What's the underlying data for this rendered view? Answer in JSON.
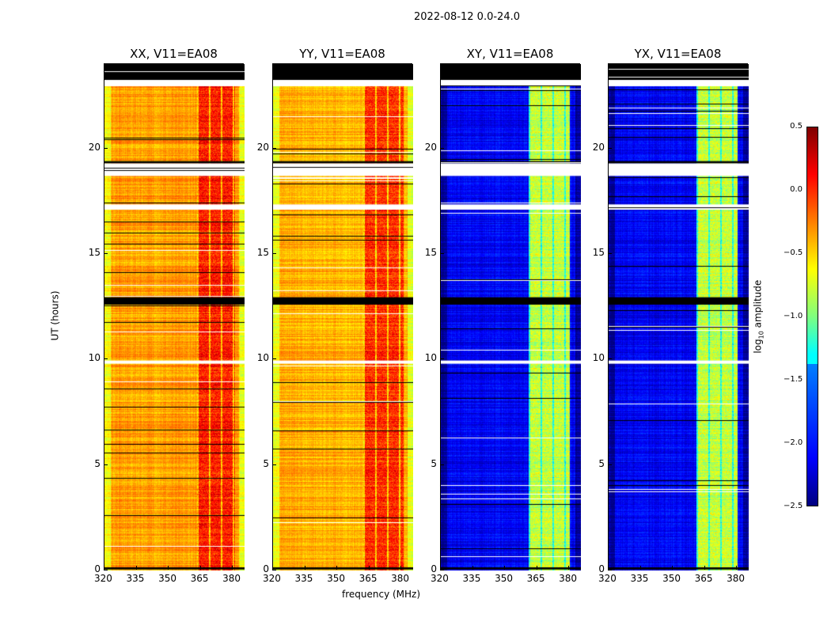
{
  "figure_title": "2022-08-12 0.0-24.0",
  "chart_data": {
    "type": "heatmap",
    "title": "2022-08-12 0.0-24.0",
    "xlabel": "frequency (MHz)",
    "ylabel": "UT (hours)",
    "xlim": [
      320,
      385.5
    ],
    "ylim": [
      0,
      24
    ],
    "xticks": [
      "320",
      "335",
      "350",
      "365",
      "380"
    ],
    "xtick_values": [
      320,
      335,
      350,
      365,
      380
    ],
    "yticks": [
      "0",
      "5",
      "10",
      "15",
      "20"
    ],
    "ytick_values": [
      0,
      5,
      10,
      15,
      20
    ],
    "colorbar": {
      "label_pre": "log",
      "label_sub": "10",
      "label_post": " amplitude",
      "range": [
        -2.5,
        0.5
      ],
      "ticks": [
        "0.5",
        "0.0",
        "−0.5",
        "−1.0",
        "−1.5",
        "−2.0",
        "−2.5"
      ],
      "tick_values": [
        0.5,
        0,
        -0.5,
        -1,
        -1.5,
        -2,
        -2.5
      ],
      "colormap": "jet"
    },
    "flagged_black_hours": [
      [
        23.25,
        24
      ],
      [
        12.6,
        12.95
      ],
      [
        19.3,
        19.4
      ],
      [
        0.05,
        0.15
      ]
    ],
    "missing_white_hours": [
      [
        22.95,
        23.25
      ],
      [
        18.7,
        19.3
      ],
      [
        17.1,
        17.35
      ],
      [
        9.8,
        9.95
      ]
    ],
    "panels": [
      {
        "title": "XX, V11=EA08",
        "base_level": -0.35,
        "rfi_level": 0.05,
        "rfi_band_mhz": [
          363,
          381
        ]
      },
      {
        "title": "YY, V11=EA08",
        "base_level": -0.4,
        "rfi_level": 0.0,
        "rfi_band_mhz": [
          362,
          381
        ]
      },
      {
        "title": "XY, V11=EA08",
        "base_level": -2.15,
        "rfi_level": -0.8,
        "rfi_band_mhz": [
          361,
          380
        ]
      },
      {
        "title": "YX, V11=EA08",
        "base_level": -2.15,
        "rfi_level": -0.8,
        "rfi_band_mhz": [
          361,
          380
        ]
      }
    ]
  }
}
